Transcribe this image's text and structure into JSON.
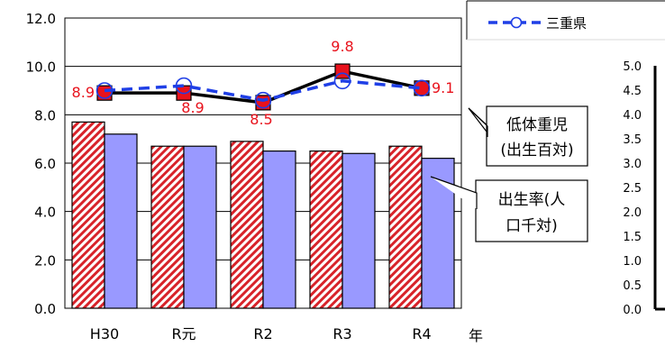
{
  "chart_data": [
    {
      "type": "bar+line",
      "categories": [
        "H30",
        "R元",
        "R2",
        "R3",
        "R4"
      ],
      "x_unit": "年",
      "ylim": [
        0,
        12
      ],
      "yticks": [
        "0.0",
        "2.0",
        "4.0",
        "6.0",
        "8.0",
        "10.0",
        "12.0"
      ],
      "grid": true,
      "bar_series": [
        {
          "values": [
            7.7,
            6.7,
            6.9,
            6.5,
            6.7
          ],
          "color": "#d8232a",
          "pattern": "diagonal-hatch"
        },
        {
          "values": [
            7.2,
            6.7,
            6.5,
            6.4,
            6.2
          ],
          "color": "#9999ff"
        }
      ],
      "line_series": [
        {
          "values": [
            8.9,
            8.9,
            8.5,
            9.8,
            9.1
          ],
          "color": "#000000",
          "marker": "square",
          "marker_color": "#e8121c",
          "data_labels": [
            "8.9",
            "8.9",
            "8.5",
            "9.8",
            "9.1"
          ]
        },
        {
          "name": "三重県",
          "values": [
            9.0,
            9.2,
            8.6,
            9.4,
            9.1
          ],
          "color": "#1f3fe6",
          "dash": true,
          "marker": "circle"
        }
      ],
      "callouts": [
        {
          "lines": [
            "低体重児",
            "(出生百対)"
          ],
          "points_to": "line"
        },
        {
          "lines": [
            "出生率(人",
            "口千対)"
          ],
          "points_to": "bars"
        }
      ],
      "legend_visible": [
        "三重県"
      ]
    },
    {
      "type": "line",
      "note": "second chart, mostly cropped; only its y axis is visible",
      "ylim": [
        0,
        5
      ],
      "yticks": [
        "0.0",
        "0.5",
        "1.0",
        "1.5",
        "2.0",
        "2.5",
        "3.0",
        "3.5",
        "4.0",
        "4.5",
        "5.0"
      ]
    }
  ]
}
